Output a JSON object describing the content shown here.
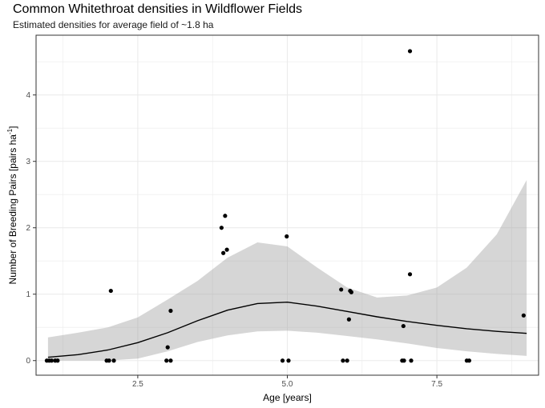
{
  "chart_data": {
    "type": "scatter",
    "title": "Common Whitethroat densities in Wildflower Fields",
    "subtitle": "Estimated densities for average field of ~1.8 ha",
    "xlabel": "Age [years]",
    "ylabel": "Number of Breeding Pairs [pairs ha",
    "ylabel_superscript": "-1",
    "ylabel_suffix": "]",
    "xlim": [
      0.8,
      9.2
    ],
    "ylim": [
      -0.22,
      4.9
    ],
    "x_ticks": [
      2.5,
      5.0,
      7.5
    ],
    "x_tick_labels": [
      "2.5",
      "5.0",
      "7.5"
    ],
    "y_ticks": [
      0,
      1,
      2,
      3,
      4
    ],
    "y_tick_labels": [
      "0",
      "1",
      "2",
      "3",
      "4"
    ],
    "grid": true,
    "points": [
      {
        "x": 0.98,
        "y": 0
      },
      {
        "x": 1.02,
        "y": 0
      },
      {
        "x": 1.06,
        "y": 0
      },
      {
        "x": 1.12,
        "y": 0
      },
      {
        "x": 1.16,
        "y": 0
      },
      {
        "x": 1.98,
        "y": 0
      },
      {
        "x": 2.02,
        "y": 0
      },
      {
        "x": 2.1,
        "y": 0
      },
      {
        "x": 2.05,
        "y": 1.05
      },
      {
        "x": 2.98,
        "y": 0
      },
      {
        "x": 3.05,
        "y": 0
      },
      {
        "x": 3.0,
        "y": 0.2
      },
      {
        "x": 3.05,
        "y": 0.75
      },
      {
        "x": 3.9,
        "y": 2.0
      },
      {
        "x": 3.93,
        "y": 1.62
      },
      {
        "x": 3.96,
        "y": 2.18
      },
      {
        "x": 3.99,
        "y": 1.67
      },
      {
        "x": 4.92,
        "y": 0
      },
      {
        "x": 5.02,
        "y": 0
      },
      {
        "x": 4.99,
        "y": 1.87
      },
      {
        "x": 5.9,
        "y": 1.07
      },
      {
        "x": 5.93,
        "y": 0
      },
      {
        "x": 6.0,
        "y": 0
      },
      {
        "x": 6.03,
        "y": 0.62
      },
      {
        "x": 6.05,
        "y": 1.05
      },
      {
        "x": 6.07,
        "y": 1.03
      },
      {
        "x": 6.92,
        "y": 0
      },
      {
        "x": 6.95,
        "y": 0
      },
      {
        "x": 6.94,
        "y": 0.52
      },
      {
        "x": 7.05,
        "y": 4.66
      },
      {
        "x": 7.05,
        "y": 1.3
      },
      {
        "x": 7.07,
        "y": 0
      },
      {
        "x": 8.0,
        "y": 0
      },
      {
        "x": 8.04,
        "y": 0
      },
      {
        "x": 8.95,
        "y": 0.68
      }
    ],
    "fit_line": {
      "x": [
        1,
        1.5,
        2,
        2.5,
        3,
        3.5,
        4,
        4.5,
        5,
        5.5,
        6,
        6.5,
        7,
        7.5,
        8,
        8.5,
        9
      ],
      "y": [
        0.05,
        0.09,
        0.16,
        0.27,
        0.42,
        0.6,
        0.76,
        0.86,
        0.88,
        0.82,
        0.74,
        0.66,
        0.59,
        0.53,
        0.48,
        0.44,
        0.41
      ]
    },
    "confidence_band": {
      "x": [
        1,
        1.5,
        2,
        2.5,
        3,
        3.5,
        4,
        4.5,
        5,
        5.5,
        6,
        6.5,
        7,
        7.5,
        8,
        8.5,
        9
      ],
      "lower": [
        0.0,
        0.0,
        0.0,
        0.03,
        0.14,
        0.28,
        0.38,
        0.44,
        0.45,
        0.42,
        0.37,
        0.32,
        0.26,
        0.19,
        0.14,
        0.1,
        0.07
      ],
      "upper": [
        0.35,
        0.42,
        0.5,
        0.65,
        0.92,
        1.2,
        1.55,
        1.78,
        1.72,
        1.4,
        1.1,
        0.95,
        0.98,
        1.1,
        1.4,
        1.9,
        2.72
      ]
    },
    "colors": {
      "points": "#000000",
      "line": "#000000",
      "band": "#999999",
      "grid": "#ebebeb",
      "panel_border": "#333333"
    }
  }
}
